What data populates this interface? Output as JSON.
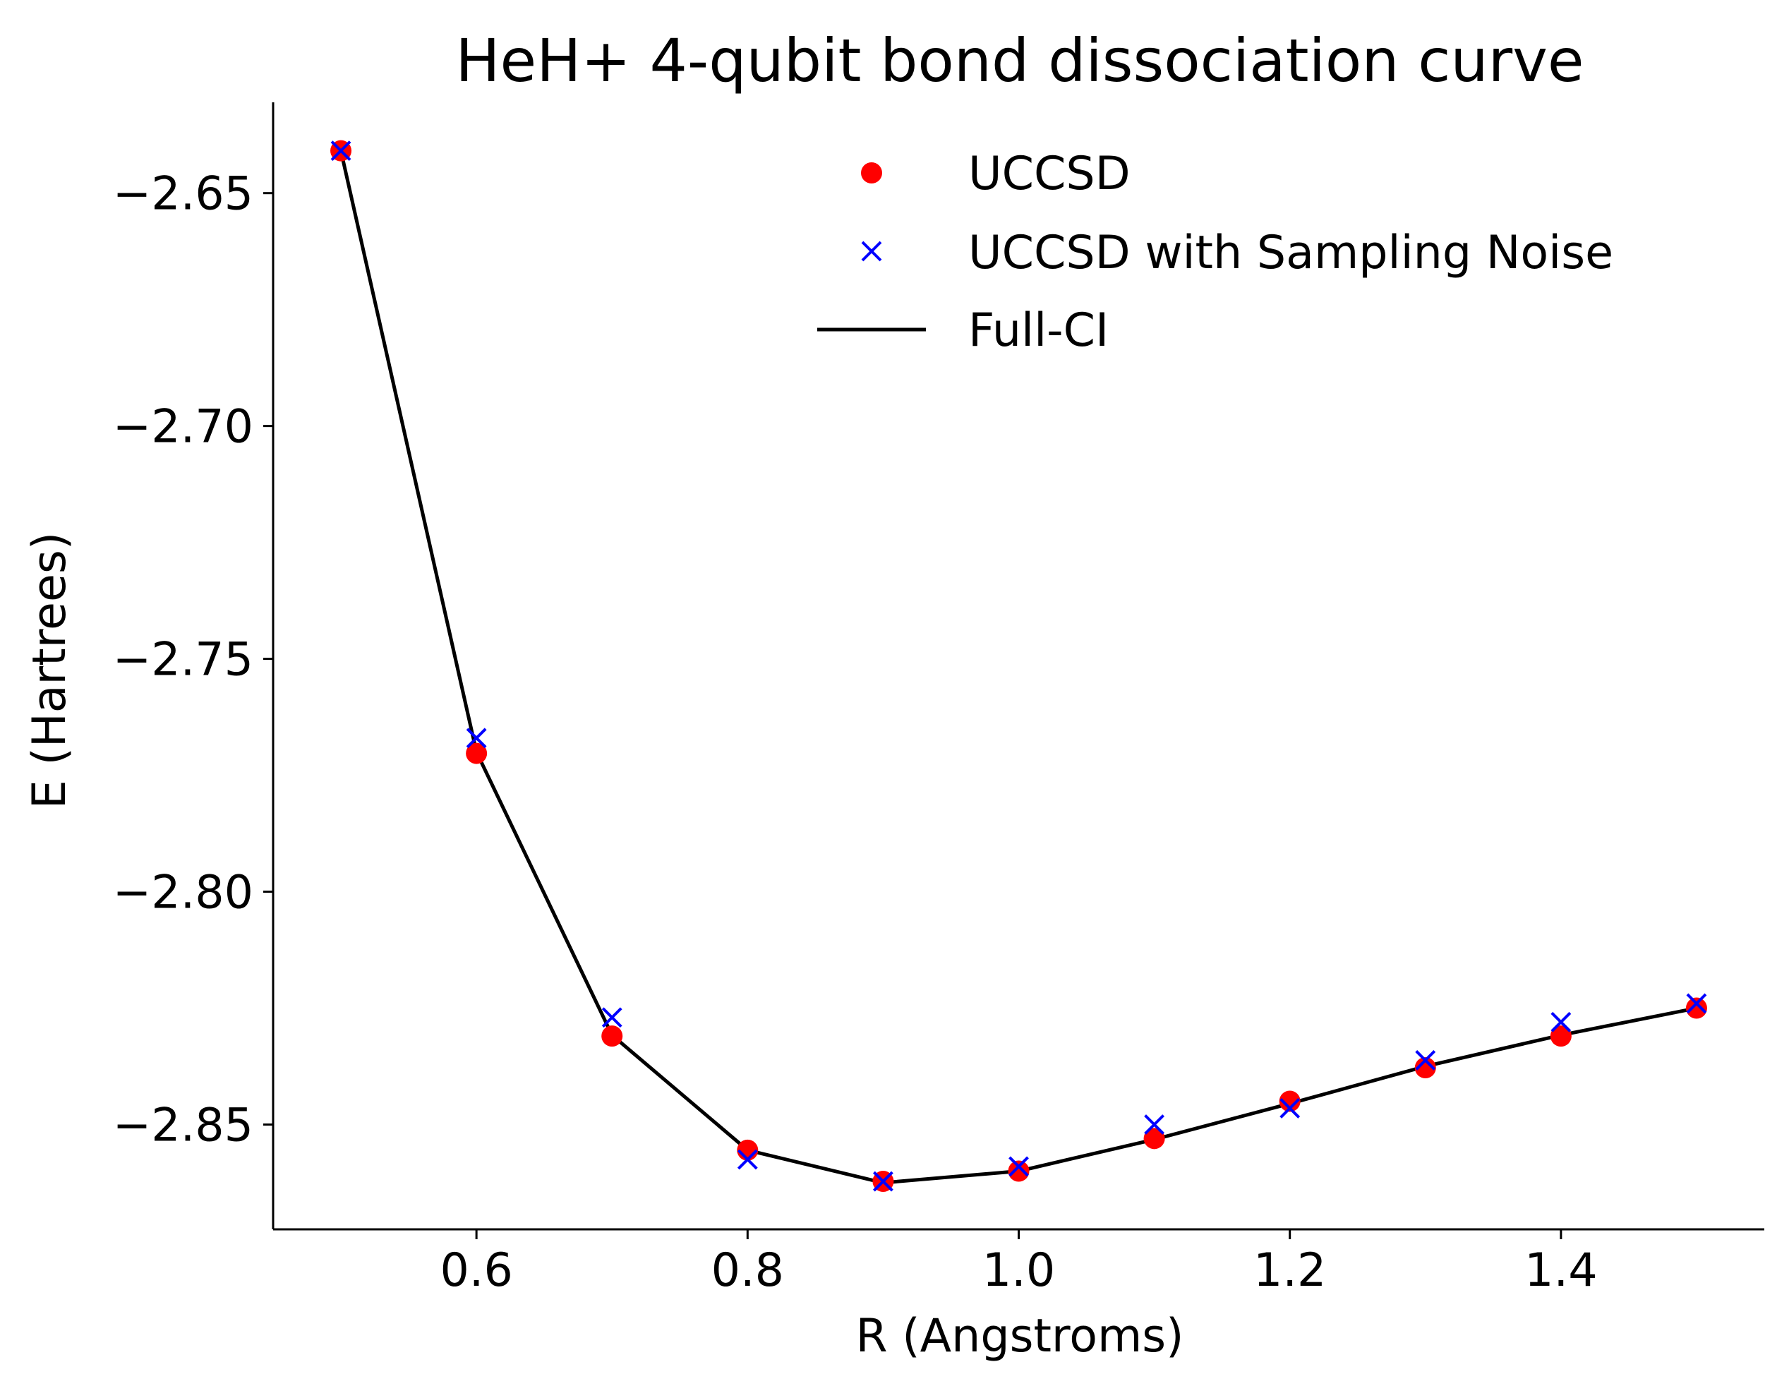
{
  "chart_data": {
    "type": "line",
    "title": "HeH+ 4-qubit bond dissociation curve",
    "xlabel": "R (Angstroms)",
    "ylabel": "E (Hartrees)",
    "xlim": [
      0.45,
      1.55
    ],
    "ylim": [
      -2.8725,
      -2.6305
    ],
    "x_ticks": [
      0.6,
      0.8,
      1.0,
      1.2,
      1.4
    ],
    "x_tick_labels": [
      "0.6",
      "0.8",
      "1.0",
      "1.2",
      "1.4"
    ],
    "y_ticks": [
      -2.65,
      -2.7,
      -2.75,
      -2.8,
      -2.85
    ],
    "y_tick_labels": [
      "−2.65",
      "−2.70",
      "−2.75",
      "−2.80",
      "−2.85"
    ],
    "grid": false,
    "legend_position": "top-right",
    "x": [
      0.5,
      0.6,
      0.7,
      0.8,
      0.9,
      1.0,
      1.1,
      1.2,
      1.3,
      1.4,
      1.5
    ],
    "series": [
      {
        "name": "UCCSD",
        "style": "scatter-dot",
        "color": "#ff0000",
        "values": [
          -2.6409,
          -2.7703,
          -2.831,
          -2.8555,
          -2.8622,
          -2.86,
          -2.853,
          -2.845,
          -2.8378,
          -2.831,
          -2.825
        ]
      },
      {
        "name": "UCCSD with Sampling Noise",
        "style": "scatter-x",
        "color": "#0000ff",
        "values": [
          -2.6409,
          -2.767,
          -2.827,
          -2.8575,
          -2.8622,
          -2.859,
          -2.85,
          -2.8465,
          -2.8362,
          -2.828,
          -2.824
        ]
      },
      {
        "name": "Full-CI",
        "style": "line",
        "color": "#000000",
        "values": [
          -2.6409,
          -2.77,
          -2.8308,
          -2.8555,
          -2.8625,
          -2.86,
          -2.8532,
          -2.8455,
          -2.8375,
          -2.8308,
          -2.825
        ]
      }
    ]
  }
}
